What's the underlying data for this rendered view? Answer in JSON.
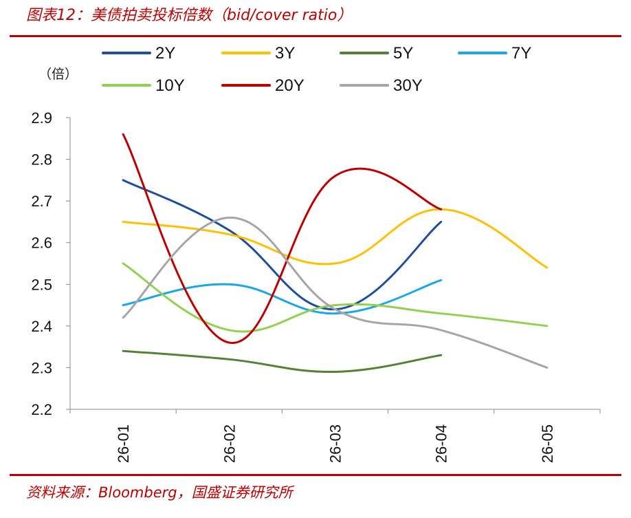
{
  "title": "图表12：美债拍卖投标倍数（bid/cover ratio）",
  "source": "资料来源：Bloomberg，国盛证券研究所",
  "unit_label": "（倍）",
  "chart_data": {
    "type": "line",
    "categories": [
      "26-01",
      "26-02",
      "26-03",
      "26-04",
      "26-05"
    ],
    "ylim": [
      2.2,
      2.9
    ],
    "yticks": [
      "2.9",
      "2.8",
      "2.7",
      "2.6",
      "2.5",
      "2.4",
      "2.3",
      "2.2"
    ],
    "legend_placement": "top",
    "series": [
      {
        "name": "2Y",
        "color": "#1f4e9c",
        "values": [
          2.75,
          2.63,
          2.44,
          2.65,
          null
        ]
      },
      {
        "name": "3Y",
        "color": "#ffc000",
        "values": [
          2.65,
          2.62,
          2.55,
          2.68,
          2.54
        ]
      },
      {
        "name": "5Y",
        "color": "#548235",
        "values": [
          2.34,
          2.32,
          2.29,
          2.33,
          null
        ]
      },
      {
        "name": "7Y",
        "color": "#1aa7e8",
        "values": [
          2.45,
          2.5,
          2.43,
          2.51,
          null
        ]
      },
      {
        "name": "10Y",
        "color": "#92d050",
        "values": [
          2.55,
          2.39,
          2.45,
          2.43,
          2.4
        ]
      },
      {
        "name": "20Y",
        "color": "#c00000",
        "values": [
          2.86,
          2.36,
          2.76,
          2.68,
          null
        ]
      },
      {
        "name": "30Y",
        "color": "#a6a6a6",
        "values": [
          2.42,
          2.66,
          2.44,
          2.39,
          2.3
        ]
      }
    ]
  }
}
